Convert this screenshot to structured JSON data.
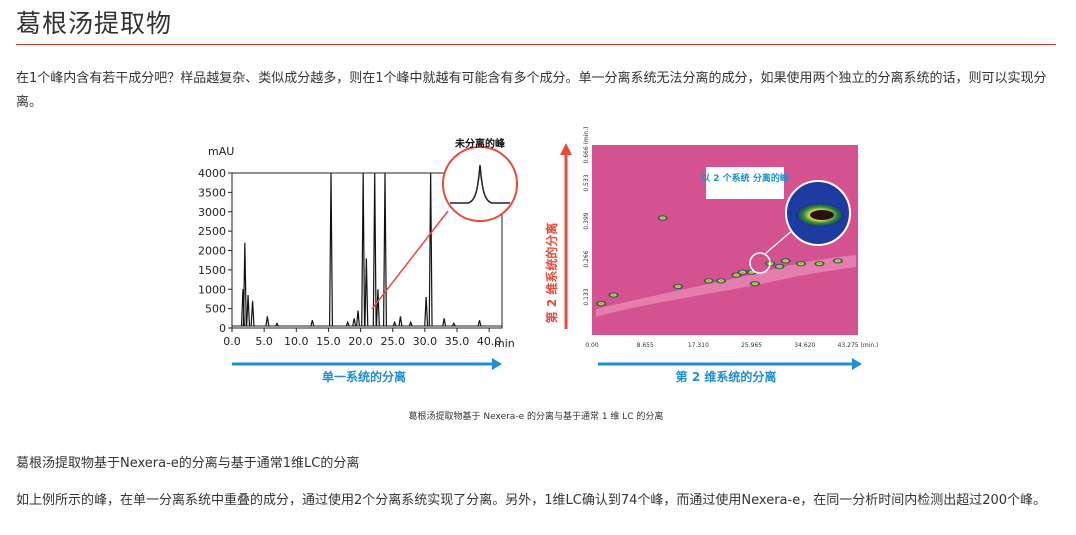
{
  "page": {
    "title": "葛根汤提取物",
    "intro": "在1个峰内含有若干成分吧？样品越复杂、类似成分越多，则在1个峰中就越有可能含有多个成分。单一分离系统无法分离的成分，如果使用两个独立的分离系统的话，则可以实现分离。",
    "figure_caption": "葛根汤提取物基于 Nexera-e 的分离与基于通常 1 维 LC 的分离",
    "subtitle": "葛根汤提取物基于Nexera-e的分离与基于通常1维LC的分离",
    "conclusion": "如上例所示的峰，在单一分离系统中重叠的成分，通过使用2个分离系统实现了分离。另外，1维LC确认到74个峰，而通过使用Nexera-e，在同一分析时间内检测出超过200个峰。"
  },
  "chart_data": [
    {
      "type": "line",
      "ylabel": "mAU",
      "xlabel": "min",
      "bottom_label": "单一系统的分离",
      "annotation": "未分离的峰",
      "ylim": [
        0,
        4000
      ],
      "xlim": [
        0,
        42
      ],
      "y_ticks": [
        "0",
        "500",
        "1000",
        "1500",
        "2000",
        "2500",
        "3000",
        "3500",
        "4000"
      ],
      "x_ticks": [
        "0.0",
        "5.0",
        "10.0",
        "15.0",
        "20.0",
        "25.0",
        "30.0",
        "35.0",
        "40.0"
      ],
      "peaks": [
        {
          "x": 2.0,
          "y": 2200
        },
        {
          "x": 1.7,
          "y": 1000
        },
        {
          "x": 2.5,
          "y": 850
        },
        {
          "x": 3.2,
          "y": 700
        },
        {
          "x": 5.5,
          "y": 300
        },
        {
          "x": 7.0,
          "y": 120
        },
        {
          "x": 12.5,
          "y": 200
        },
        {
          "x": 15.4,
          "y": 4000
        },
        {
          "x": 18.0,
          "y": 150
        },
        {
          "x": 19.0,
          "y": 250
        },
        {
          "x": 19.6,
          "y": 450
        },
        {
          "x": 20.4,
          "y": 4000
        },
        {
          "x": 20.9,
          "y": 1800
        },
        {
          "x": 22.2,
          "y": 4000
        },
        {
          "x": 22.7,
          "y": 1000
        },
        {
          "x": 23.8,
          "y": 4000
        },
        {
          "x": 25.3,
          "y": 150
        },
        {
          "x": 26.2,
          "y": 300
        },
        {
          "x": 27.8,
          "y": 150
        },
        {
          "x": 30.2,
          "y": 800
        },
        {
          "x": 30.9,
          "y": 4000
        },
        {
          "x": 33.0,
          "y": 250
        },
        {
          "x": 34.5,
          "y": 120
        },
        {
          "x": 38.5,
          "y": 200
        }
      ]
    },
    {
      "type": "heatmap",
      "ylabel": "第 2 维系统的分离",
      "bottom_label": "第 2 维系统的分离",
      "annotation": "以 2 个系统 分离的峰",
      "x_ticks": [
        "0.00",
        "8.655",
        "17.310",
        "25.965",
        "34.620",
        "43.275 (min.)"
      ],
      "y_ticks": [
        "0.133",
        "0.266",
        "0.399",
        "0.533",
        "0.666 (min.)"
      ],
      "background_color": "#d4528f",
      "spots": [
        {
          "x": 1.5,
          "y": 0.11
        },
        {
          "x": 3.5,
          "y": 0.14
        },
        {
          "x": 14.0,
          "y": 0.17
        },
        {
          "x": 19.0,
          "y": 0.19
        },
        {
          "x": 21.0,
          "y": 0.19
        },
        {
          "x": 23.5,
          "y": 0.21
        },
        {
          "x": 24.5,
          "y": 0.22
        },
        {
          "x": 26.0,
          "y": 0.22
        },
        {
          "x": 29.0,
          "y": 0.25
        },
        {
          "x": 30.5,
          "y": 0.24
        },
        {
          "x": 31.5,
          "y": 0.26
        },
        {
          "x": 34.0,
          "y": 0.25
        },
        {
          "x": 37.0,
          "y": 0.25
        },
        {
          "x": 40.0,
          "y": 0.26
        },
        {
          "x": 26.5,
          "y": 0.18
        },
        {
          "x": 11.5,
          "y": 0.41
        }
      ]
    }
  ]
}
